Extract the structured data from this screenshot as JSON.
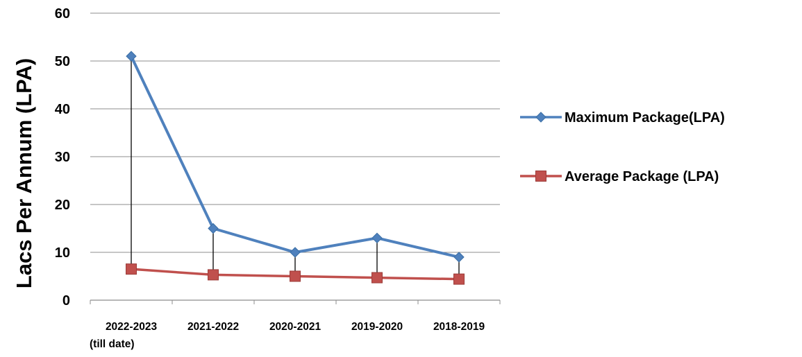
{
  "chart_data": {
    "type": "line",
    "ylabel": "Lacs Per Annum (LPA)",
    "xlabel": "",
    "title": "",
    "ylim": [
      0,
      60
    ],
    "yticks": [
      0,
      10,
      20,
      30,
      40,
      50,
      60
    ],
    "categories": [
      [
        "2022-2023",
        "(till date)"
      ],
      [
        "2021-2022"
      ],
      [
        "2020-2021"
      ],
      [
        "2019-2020"
      ],
      [
        "2018-2019"
      ]
    ],
    "series": [
      {
        "name": "Maximum Package(LPA)",
        "values": [
          51,
          15,
          10,
          13,
          9
        ],
        "color": "#4f81bd",
        "marker": "diamond"
      },
      {
        "name": "Average Package (LPA)",
        "values": [
          6.5,
          5.3,
          5.0,
          4.7,
          4.4
        ],
        "color": "#c0504d",
        "marker": "square"
      }
    ],
    "drop_lines": true,
    "drop_line_color": "#000000",
    "grid": "horizontal",
    "legend_position": "right"
  }
}
